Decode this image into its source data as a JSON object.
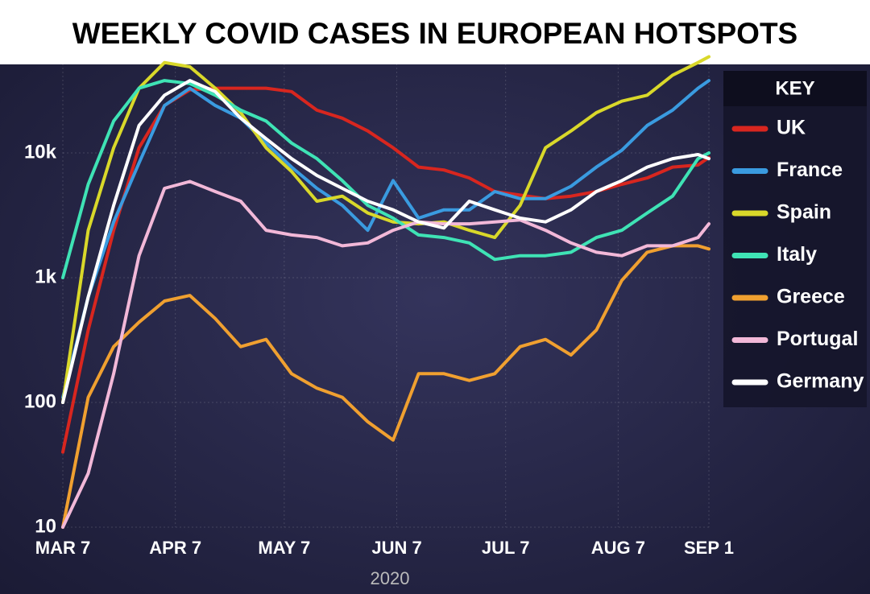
{
  "chart_data": {
    "type": "line",
    "title": "WEEKLY COVID CASES IN EUROPEAN HOTSPOTS",
    "x_label": "2020",
    "legend_title": "KEY",
    "legend": "right",
    "log_y": true,
    "grid": true,
    "x": [
      "2020-03-07",
      "2020-03-14",
      "2020-03-21",
      "2020-03-28",
      "2020-04-04",
      "2020-04-11",
      "2020-04-18",
      "2020-04-25",
      "2020-05-02",
      "2020-05-09",
      "2020-05-16",
      "2020-05-23",
      "2020-05-30",
      "2020-06-06",
      "2020-06-13",
      "2020-06-20",
      "2020-06-27",
      "2020-07-04",
      "2020-07-11",
      "2020-07-18",
      "2020-07-25",
      "2020-08-01",
      "2020-08-08",
      "2020-08-15",
      "2020-08-22",
      "2020-08-29",
      "2020-09-01"
    ],
    "xlim": [
      "2020-03-07",
      "2020-09-01"
    ],
    "xticks": [
      {
        "value": "2020-03-07",
        "label": "MAR 7"
      },
      {
        "value": "2020-04-07",
        "label": "APR 7"
      },
      {
        "value": "2020-05-07",
        "label": "MAY 7"
      },
      {
        "value": "2020-06-07",
        "label": "JUN 7"
      },
      {
        "value": "2020-07-07",
        "label": "JUL 7"
      },
      {
        "value": "2020-08-07",
        "label": "AUG 7"
      },
      {
        "value": "2020-09-01",
        "label": "SEP 1"
      }
    ],
    "ylim": [
      10,
      70000
    ],
    "yticks": [
      10,
      100,
      {
        "value": 1000,
        "label": "1k"
      },
      {
        "value": 10000,
        "label": "10k"
      }
    ],
    "series": [
      {
        "name": "UK",
        "color": "#d8261f",
        "values": [
          40,
          380,
          2400,
          11000,
          24000,
          32000,
          33000,
          33000,
          33000,
          31000,
          22000,
          19000,
          15000,
          11000,
          7700,
          7300,
          6300,
          4900,
          4600,
          4300,
          4500,
          4900,
          5600,
          6300,
          7700,
          8000,
          9200
        ]
      },
      {
        "name": "France",
        "color": "#3a9be0",
        "values": [
          110,
          700,
          2800,
          8300,
          24000,
          33000,
          24000,
          19000,
          12000,
          7700,
          5200,
          3800,
          2400,
          6000,
          3000,
          3500,
          3500,
          4900,
          4300,
          4300,
          5400,
          7700,
          10500,
          16600,
          22000,
          33000,
          38000
        ]
      },
      {
        "name": "Spain",
        "color": "#d9d82a",
        "values": [
          100,
          2400,
          11000,
          33000,
          53000,
          49000,
          33000,
          21000,
          11000,
          7100,
          4100,
          4500,
          3300,
          2800,
          2700,
          2800,
          2400,
          2100,
          3800,
          11000,
          15000,
          21000,
          26000,
          29000,
          42000,
          53000,
          59000
        ]
      },
      {
        "name": "Italy",
        "color": "#3fe3b5",
        "values": [
          1000,
          5600,
          18000,
          33000,
          38000,
          36000,
          29000,
          22000,
          18000,
          12000,
          9000,
          6000,
          3800,
          3000,
          2200,
          2100,
          1900,
          1400,
          1500,
          1500,
          1600,
          2100,
          2400,
          3300,
          4500,
          9000,
          10000
        ]
      },
      {
        "name": "Greece",
        "color": "#f0a030",
        "values": [
          10,
          110,
          280,
          440,
          650,
          720,
          470,
          280,
          320,
          170,
          130,
          110,
          70,
          50,
          170,
          170,
          150,
          170,
          280,
          320,
          240,
          380,
          950,
          1600,
          1800,
          1800,
          1700
        ]
      },
      {
        "name": "Portugal",
        "color": "#f2b8d8",
        "values": [
          10,
          27,
          170,
          1500,
          5200,
          5900,
          4900,
          4100,
          2400,
          2200,
          2100,
          1800,
          1900,
          2400,
          2800,
          2700,
          2700,
          2800,
          2900,
          2400,
          1900,
          1600,
          1500,
          1800,
          1800,
          2100,
          2700
        ]
      },
      {
        "name": "Germany",
        "color": "#ffffff",
        "values": [
          100,
          700,
          3800,
          16600,
          29000,
          38000,
          31000,
          19000,
          13000,
          9000,
          6600,
          5200,
          4100,
          3500,
          2800,
          2500,
          4100,
          3500,
          3000,
          2800,
          3500,
          4900,
          6000,
          7700,
          9000,
          9700,
          9000
        ]
      }
    ]
  }
}
